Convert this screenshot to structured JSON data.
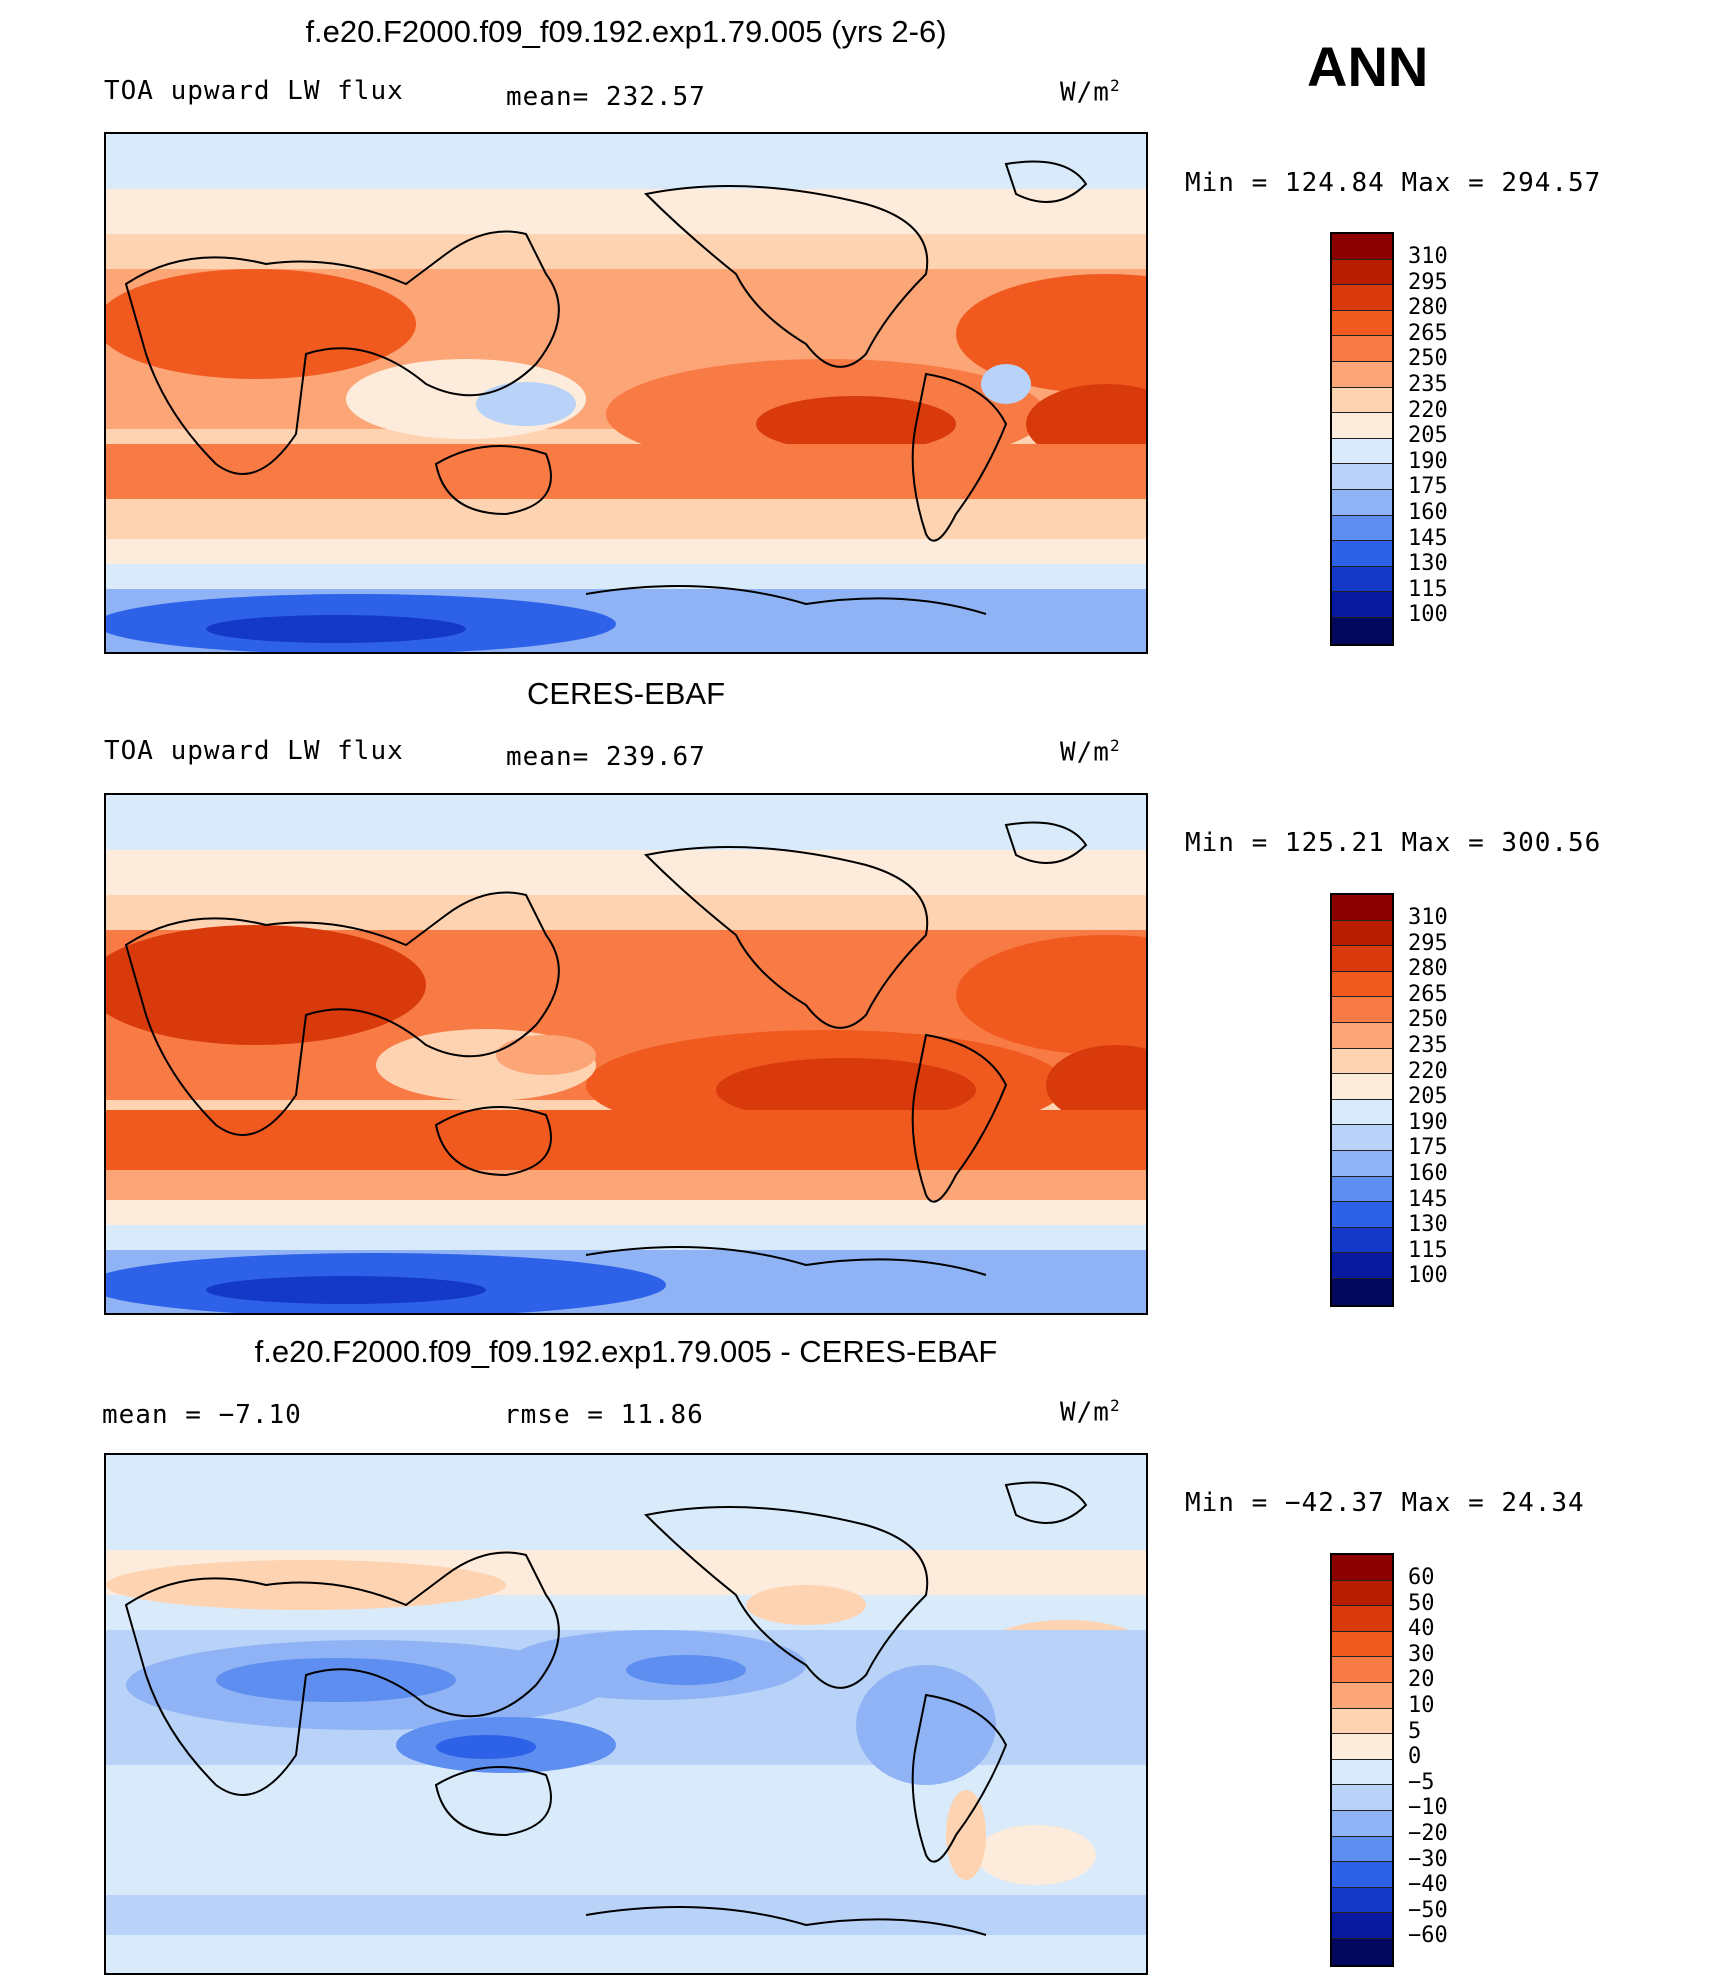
{
  "season": "ANN",
  "panels": [
    {
      "title": "f.e20.F2000.f09_f09.192.exp1.79.005 (yrs 2-6)",
      "left_label": "TOA upward LW flux",
      "mid_label": "mean= 232.57",
      "units": "W/m",
      "units_exp": "2",
      "minmax": "Min = 124.84 Max = 294.57",
      "colorbar_levels": [
        "310",
        "295",
        "280",
        "265",
        "250",
        "235",
        "220",
        "205",
        "190",
        "175",
        "160",
        "145",
        "130",
        "115",
        "100"
      ],
      "colorbar_colors": [
        "#8b0000",
        "#b81d00",
        "#d93a0c",
        "#f05a1e",
        "#f87a45",
        "#fca577",
        "#fdd3b2",
        "#fdebdb",
        "#d9ebfb",
        "#b9d3f8",
        "#8fb3f5",
        "#5d8ef0",
        "#2d62e8",
        "#1438c8",
        "#0a1aa0",
        "#03085e"
      ]
    },
    {
      "title": "CERES-EBAF",
      "left_label": "TOA upward LW flux",
      "mid_label": "mean= 239.67",
      "units": "W/m",
      "units_exp": "2",
      "minmax": "Min = 125.21 Max = 300.56",
      "colorbar_levels": [
        "310",
        "295",
        "280",
        "265",
        "250",
        "235",
        "220",
        "205",
        "190",
        "175",
        "160",
        "145",
        "130",
        "115",
        "100"
      ],
      "colorbar_colors": [
        "#8b0000",
        "#b81d00",
        "#d93a0c",
        "#f05a1e",
        "#f87a45",
        "#fca577",
        "#fdd3b2",
        "#fdebdb",
        "#d9ebfb",
        "#b9d3f8",
        "#8fb3f5",
        "#5d8ef0",
        "#2d62e8",
        "#1438c8",
        "#0a1aa0",
        "#03085e"
      ]
    },
    {
      "title": "f.e20.F2000.f09_f09.192.exp1.79.005 - CERES-EBAF",
      "left_label": "mean =   −7.10",
      "mid_label": "rmse =   11.86",
      "units": "W/m",
      "units_exp": "2",
      "minmax": "Min = −42.37 Max =  24.34",
      "colorbar_levels": [
        "60",
        "50",
        "40",
        "30",
        "20",
        "10",
        "5",
        "0",
        "−5",
        "−10",
        "−20",
        "−30",
        "−40",
        "−50",
        "−60"
      ],
      "colorbar_colors": [
        "#8b0000",
        "#b81d00",
        "#d93a0c",
        "#f05a1e",
        "#f87a45",
        "#fca577",
        "#fdd3b2",
        "#fdebdb",
        "#d9ebfb",
        "#b9d3f8",
        "#8fb3f5",
        "#5d8ef0",
        "#2d62e8",
        "#1438c8",
        "#0a1aa0",
        "#03085e"
      ]
    }
  ]
}
